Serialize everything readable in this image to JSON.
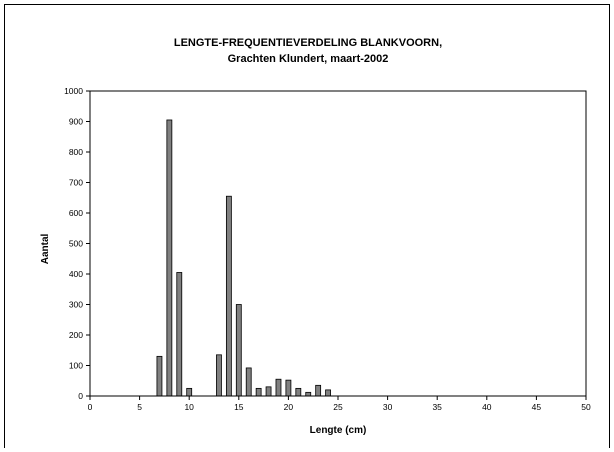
{
  "chart_data": {
    "type": "bar",
    "title": "LENGTE-FREQUENTIEVERDELING BLANKVOORN,",
    "subtitle": "Grachten Klundert, maart-2002",
    "xlabel": "Lengte (cm)",
    "ylabel": "Aantal",
    "xlim": [
      0,
      50
    ],
    "ylim": [
      0,
      1000
    ],
    "xticks": [
      0,
      5,
      10,
      15,
      20,
      25,
      30,
      35,
      40,
      45,
      50
    ],
    "yticks": [
      0,
      100,
      200,
      300,
      400,
      500,
      600,
      700,
      800,
      900,
      1000
    ],
    "grid": false,
    "legend": "none",
    "bar_color": "#808080",
    "x": [
      7,
      8,
      9,
      10,
      13,
      14,
      15,
      16,
      17,
      18,
      19,
      20,
      21,
      22,
      23,
      24
    ],
    "values": [
      130,
      905,
      405,
      25,
      135,
      655,
      300,
      92,
      25,
      30,
      55,
      52,
      25,
      12,
      35,
      20
    ]
  }
}
